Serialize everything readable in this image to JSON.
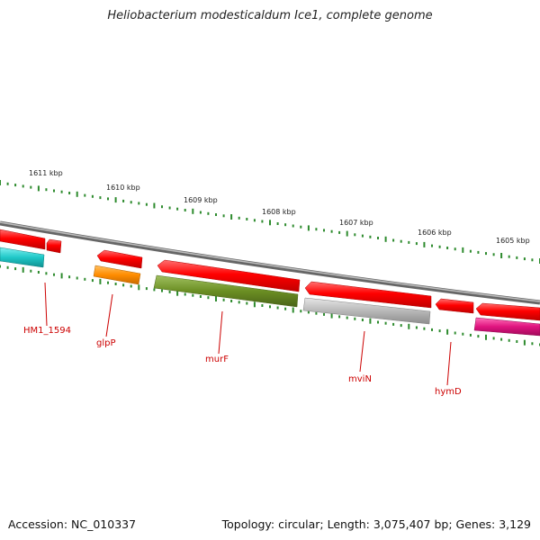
{
  "title": "Heliobacterium modesticaldum Ice1, complete genome",
  "footer": {
    "accession": "Accession: NC_010337",
    "stats": "Topology: circular; Length: 3,075,407 bp; Genes: 3,129"
  },
  "ruler": {
    "kbp_labels": [
      "1611 kbp",
      "1610 kbp",
      "1609 kbp",
      "1608 kbp",
      "1607 kbp",
      "1606 kbp",
      "1605 kbp"
    ]
  },
  "gene_labels": [
    "HM1_1594",
    "glpP",
    "murF",
    "mviN",
    "hymD"
  ],
  "colors": {
    "backbone": "#7f7f7f",
    "tick": "#2e8b2e",
    "forward_gene": "#ff0000",
    "label": "#cc0000",
    "cyan_gene": "#20c8c8",
    "orange_gene": "#ff8c00",
    "olive_gene": "#6b8e23",
    "gray_gene": "#b8b8b8",
    "magenta_gene": "#e0147f"
  }
}
